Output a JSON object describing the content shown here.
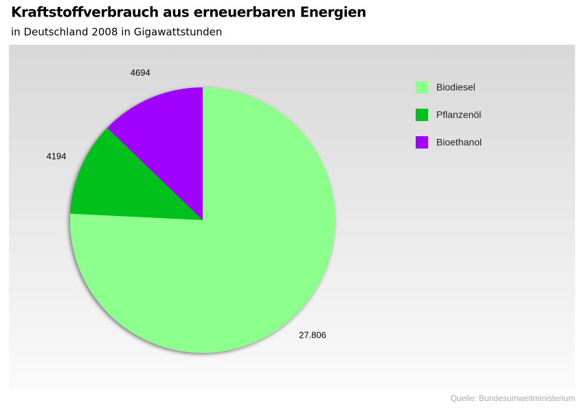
{
  "chart_data": {
    "type": "pie",
    "title": "Kraftstoffverbrauch aus erneuerbaren Energien",
    "subtitle": "in Deutschland 2008 in Gigawattstunden",
    "source": "Quelle: Bundesumweltministerium",
    "categories": [
      "Biodiesel",
      "Pflanzenöl",
      "Bioethanol"
    ],
    "values": [
      27806,
      4194,
      4694
    ],
    "value_labels": [
      "27.806",
      "4194",
      "4694"
    ],
    "colors": [
      "#8cff8c",
      "#00c01c",
      "#a000ff"
    ]
  }
}
